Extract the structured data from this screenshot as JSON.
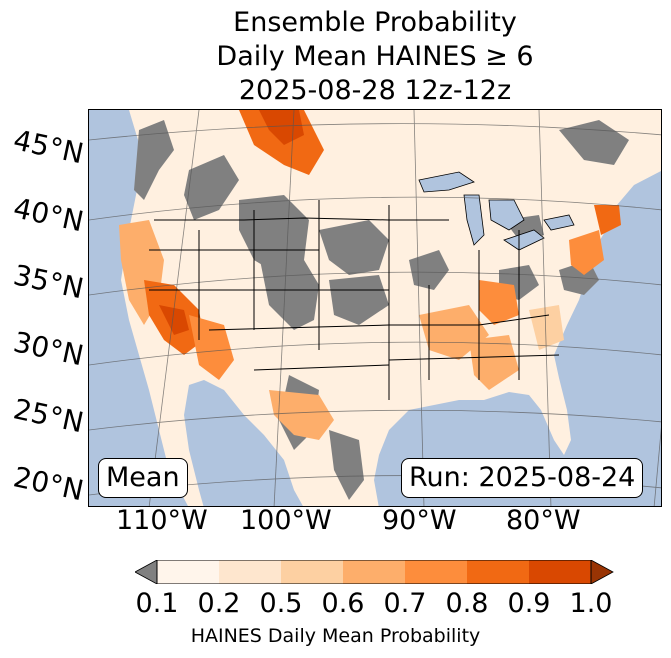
{
  "title": {
    "line1": "Ensemble Probability",
    "line2": "Daily Mean HAINES ≥ 6",
    "line3": "2025-08-28 12z-12z"
  },
  "map": {
    "lat_labels": [
      "45°N",
      "40°N",
      "35°N",
      "30°N",
      "25°N",
      "20°N"
    ],
    "lon_labels": [
      "110°W",
      "100°W",
      "90°W",
      "80°W"
    ],
    "left_label": "Mean",
    "right_label": "Run: 2025-08-24",
    "colors": {
      "ocean": "#b0c4de",
      "land_low": "#808080",
      "lakes": "#b0c4de",
      "borders": "#000000",
      "graticule": "#555555"
    }
  },
  "colorbar": {
    "title": "HAINES Daily Mean Probability",
    "ticks": [
      "0.1",
      "0.2",
      "0.5",
      "0.6",
      "0.7",
      "0.8",
      "0.9",
      "1.0"
    ],
    "under_color": "#808080",
    "over_color": "#993404",
    "colors": [
      "#fff5eb",
      "#fee6ce",
      "#fdd0a2",
      "#fdae6b",
      "#fd8d3c",
      "#f16913",
      "#d94801"
    ]
  }
}
